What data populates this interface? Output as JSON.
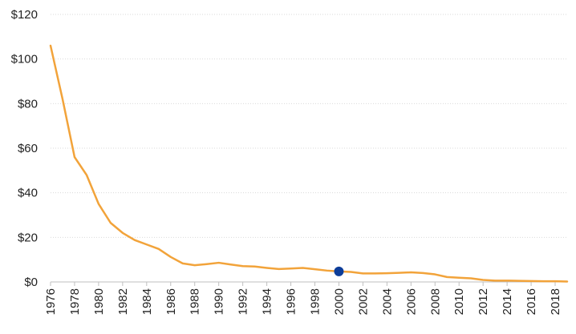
{
  "chart_data": {
    "type": "line",
    "title": "",
    "xlabel": "",
    "ylabel": "",
    "xlim": [
      1976,
      2019
    ],
    "ylim": [
      0,
      120
    ],
    "y_ticks": [
      0,
      20,
      40,
      60,
      80,
      100,
      120
    ],
    "y_tick_labels": [
      "$0",
      "$20",
      "$40",
      "$60",
      "$80",
      "$100",
      "$120"
    ],
    "x_ticks": [
      1976,
      1978,
      1980,
      1982,
      1984,
      1986,
      1988,
      1990,
      1992,
      1994,
      1996,
      1998,
      2000,
      2002,
      2004,
      2006,
      2008,
      2010,
      2012,
      2014,
      2016,
      2018
    ],
    "x_tick_labels": [
      "1976",
      "1978",
      "1980",
      "1982",
      "1984",
      "1986",
      "1988",
      "1990",
      "1992",
      "1994",
      "1996",
      "1998",
      "2000",
      "2002",
      "2004",
      "2006",
      "2008",
      "2010",
      "2012",
      "2014",
      "2016",
      "2018"
    ],
    "grid": "horizontal dotted",
    "series": [
      {
        "color": "#f2a33a",
        "x": [
          1976,
          1977,
          1978,
          1979,
          1980,
          1981,
          1982,
          1983,
          1984,
          1985,
          1986,
          1987,
          1988,
          1989,
          1990,
          1991,
          1992,
          1993,
          1994,
          1995,
          1996,
          1997,
          1998,
          1999,
          2000,
          2001,
          2002,
          2003,
          2004,
          2005,
          2006,
          2007,
          2008,
          2009,
          2010,
          2011,
          2012,
          2013,
          2014,
          2015,
          2016,
          2017,
          2018,
          2019
        ],
        "y": [
          106,
          82,
          56,
          48,
          35,
          26.5,
          22,
          18.8,
          16.8,
          14.8,
          11.2,
          8.3,
          7.5,
          8.0,
          8.6,
          7.8,
          7.1,
          6.9,
          6.3,
          5.8,
          6.0,
          6.3,
          5.7,
          5.1,
          4.7,
          4.5,
          3.8,
          3.8,
          3.9,
          4.1,
          4.3,
          4.0,
          3.4,
          2.2,
          1.9,
          1.6,
          0.9,
          0.6,
          0.6,
          0.5,
          0.4,
          0.3,
          0.3,
          0.2
        ]
      }
    ],
    "highlight_point": {
      "x": 2000,
      "y": 4.7,
      "color": "#0d3d99"
    }
  }
}
